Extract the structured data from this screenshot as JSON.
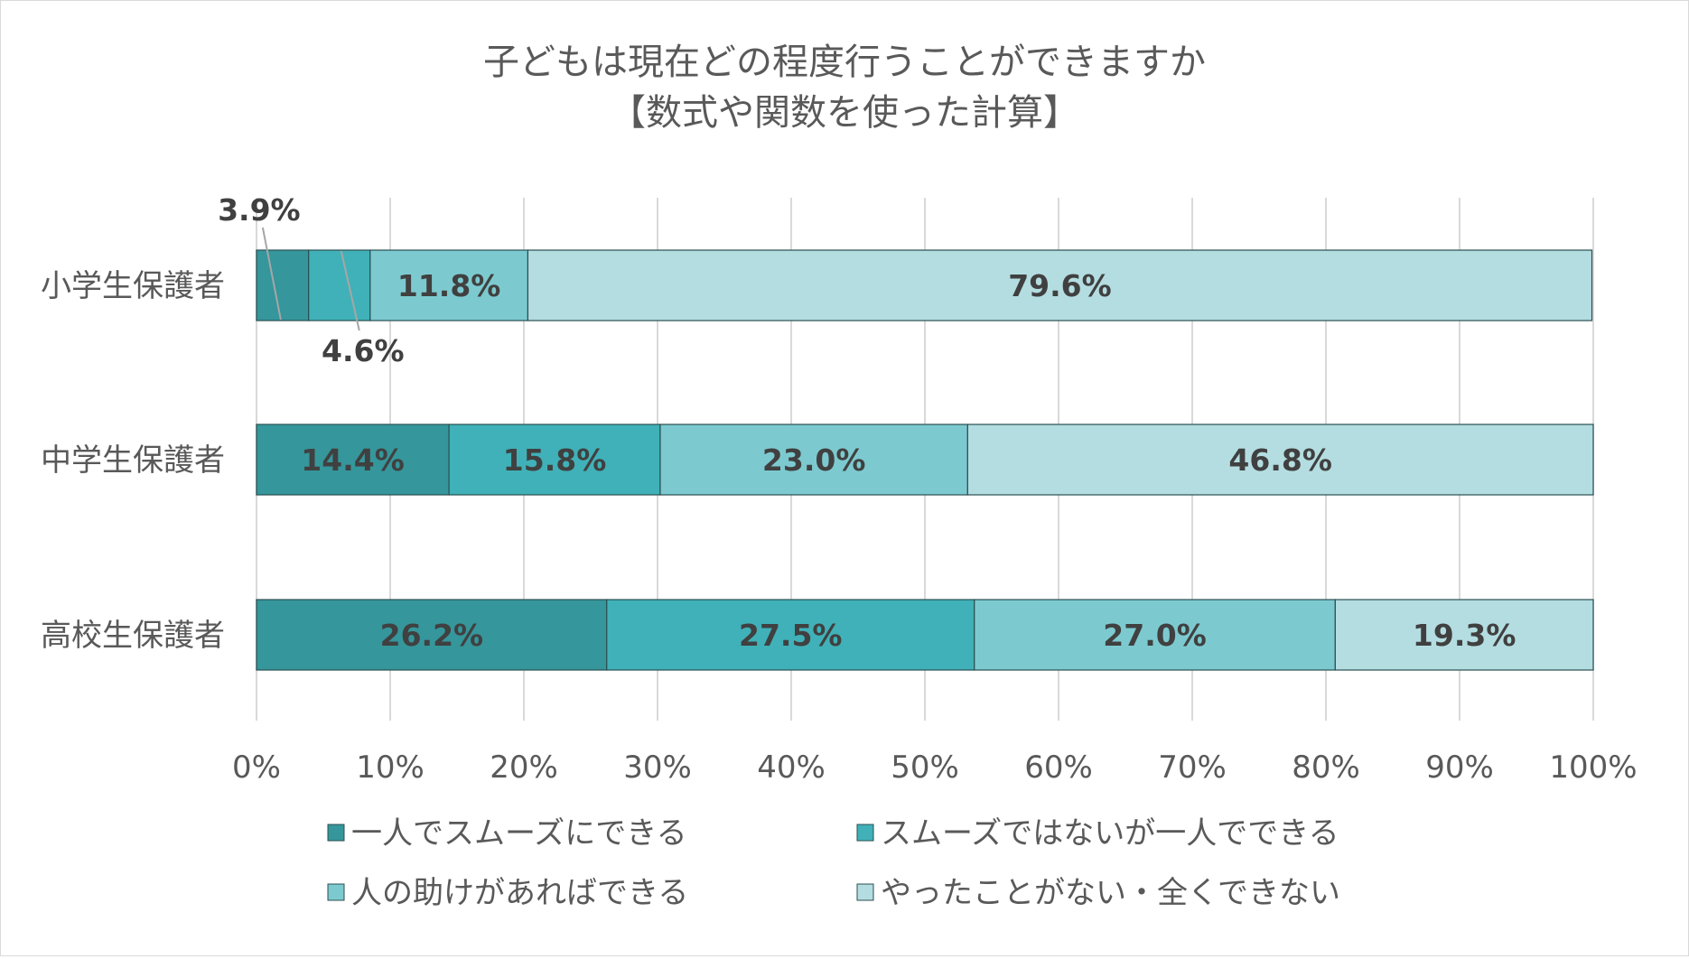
{
  "chart_data": {
    "type": "bar",
    "orientation": "horizontal",
    "stacked": "percent",
    "title": [
      "子どもは現在どの程度行うことができますか",
      "【数式や関数を使った計算】"
    ],
    "categories": [
      "小学生保護者",
      "中学生保護者",
      "高校生保護者"
    ],
    "series": [
      {
        "name": "一人でスムーズにできる",
        "color": "#35969B",
        "values": [
          3.9,
          14.4,
          26.2
        ],
        "labels": [
          "3.9%",
          "14.4%",
          "26.2%"
        ]
      },
      {
        "name": "スムーズではないが一人でできる",
        "color": "#40B1B8",
        "values": [
          4.6,
          15.8,
          27.5
        ],
        "labels": [
          "4.6%",
          "15.8%",
          "27.5%"
        ]
      },
      {
        "name": "人の助けがあればできる",
        "color": "#7CCAD0",
        "values": [
          11.8,
          23.0,
          27.0
        ],
        "labels": [
          "11.8%",
          "23.0%",
          "27.0%"
        ]
      },
      {
        "name": "やったことがない・全くできない",
        "color": "#B4DDE1",
        "values": [
          79.6,
          46.8,
          19.3
        ],
        "labels": [
          "79.6%",
          "46.8%",
          "19.3%"
        ]
      }
    ],
    "xlim": [
      0,
      100
    ],
    "x_ticks": [
      "0%",
      "10%",
      "20%",
      "30%",
      "40%",
      "50%",
      "60%",
      "70%",
      "80%",
      "90%",
      "100%"
    ],
    "grid": true,
    "legend_position": "bottom"
  }
}
